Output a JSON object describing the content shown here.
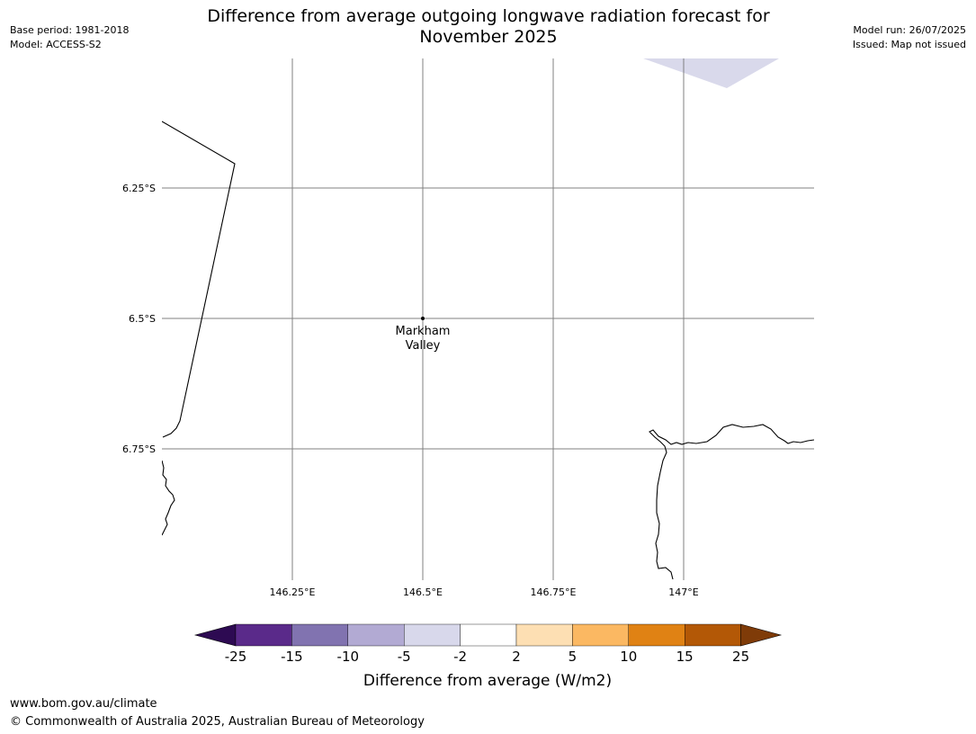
{
  "header": {
    "base_period": "Base period: 1981-2018",
    "model": "Model: ACCESS-S2",
    "title_line1": "Difference from average outgoing longwave radiation forecast for",
    "title_line2": "November 2025",
    "model_run": "Model run: 26/07/2025",
    "issued": "Issued: Map not issued"
  },
  "map": {
    "lat_labels": [
      "6.25°S",
      "6.5°S",
      "6.75°S"
    ],
    "lon_labels": [
      "146.25°E",
      "146.5°E",
      "146.75°E",
      "147°E"
    ],
    "place": {
      "name_line1": "Markham",
      "name_line2": "Valley"
    },
    "shading_color": "#d9d9eb",
    "coast_color": "#000000",
    "grid_color": "#808080"
  },
  "colorbar": {
    "label": "Difference from average (W/m2)",
    "ticks": [
      "-25",
      "-15",
      "-10",
      "-5",
      "-2",
      "2",
      "5",
      "10",
      "15",
      "25"
    ],
    "colors": [
      "#2d0a52",
      "#5a2a8a",
      "#8173b0",
      "#b2aad3",
      "#d8d8eb",
      "#ffffff",
      "#fddfb3",
      "#fbb862",
      "#e08214",
      "#b35806",
      "#7f3b08"
    ]
  },
  "footer": {
    "url": "www.bom.gov.au/climate",
    "copyright": "© Commonwealth of Australia 2025, Australian Bureau of Meteorology"
  }
}
